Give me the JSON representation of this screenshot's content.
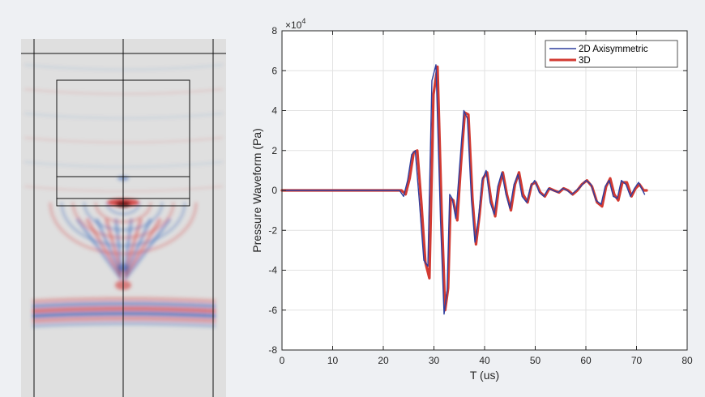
{
  "colors": {
    "background": "#eef0f3",
    "series_2d": "#2f3e9e",
    "series_3d": "#d23a32",
    "field_positive": "#d43a3a",
    "field_negative": "#2f5fb8"
  },
  "simulation": {
    "description_icon": "acoustic-field-icon"
  },
  "chart_data": {
    "type": "line",
    "title": "",
    "xlabel": "T (us)",
    "ylabel": "Pressure Waveform (Pa)",
    "y_exponent_label": "×10",
    "y_exponent_power": "4",
    "xlim": [
      0,
      80
    ],
    "ylim": [
      -8,
      8
    ],
    "y_scale_factor": 10000,
    "xticks": [
      0,
      10,
      20,
      30,
      40,
      50,
      60,
      70,
      80
    ],
    "yticks": [
      -8,
      -6,
      -4,
      -2,
      0,
      2,
      4,
      6,
      8
    ],
    "grid": true,
    "legend_position": "top-right",
    "series": [
      {
        "name": "2D Axisymmetric",
        "color": "#2f3e9e",
        "x": [
          0,
          23.2,
          24,
          24.8,
          25.6,
          26.3,
          27.1,
          28.0,
          28.8,
          29.6,
          30.4,
          31.3,
          32.0,
          32.6,
          33.1,
          33.6,
          34.3,
          35.0,
          35.9,
          36.6,
          37.4,
          38.1,
          38.8,
          39.5,
          40.3,
          41.1,
          41.9,
          42.6,
          43.4,
          44.2,
          45.0,
          45.8,
          46.6,
          47.4,
          48.3,
          49.1,
          49.9,
          50.8,
          51.7,
          52.6,
          53.5,
          54.5,
          55.4,
          56.3,
          57.2,
          58.1,
          59.0,
          60.0,
          61.0,
          62.0,
          63.0,
          63.8,
          64.6,
          65.4,
          66.2,
          67.0,
          67.9,
          68.8,
          69.6,
          70.4,
          71.2,
          71.6
        ],
        "y": [
          0,
          0,
          -0.3,
          0.5,
          1.8,
          2.0,
          -0.5,
          -3.5,
          -3.8,
          5.5,
          6.3,
          -1.5,
          -6.2,
          -5.0,
          -0.2,
          -0.4,
          -1.4,
          1.0,
          4.0,
          3.6,
          -0.5,
          -2.6,
          -1.4,
          0.5,
          1.0,
          -0.6,
          -1.2,
          0.2,
          0.9,
          -0.2,
          -0.9,
          0.3,
          0.8,
          -0.3,
          -0.6,
          0.2,
          0.5,
          -0.1,
          -0.3,
          0.1,
          0.0,
          -0.1,
          0.1,
          0.0,
          -0.2,
          0.0,
          0.2,
          0.5,
          0.3,
          -0.5,
          -0.7,
          0.2,
          0.5,
          -0.3,
          -0.4,
          0.5,
          0.3,
          -0.3,
          0.1,
          0.4,
          0.0,
          -0.2
        ]
      },
      {
        "name": "3D",
        "color": "#d23a32",
        "x": [
          0,
          23.6,
          24.4,
          25.2,
          26.0,
          26.7,
          27.5,
          28.3,
          29.1,
          29.9,
          30.7,
          31.5,
          32.2,
          32.8,
          33.3,
          33.8,
          34.6,
          35.3,
          36.1,
          36.8,
          37.6,
          38.3,
          39.0,
          39.7,
          40.5,
          41.3,
          42.1,
          42.8,
          43.6,
          44.4,
          45.2,
          46.0,
          46.8,
          47.6,
          48.5,
          49.3,
          50.1,
          51.0,
          51.9,
          52.8,
          53.7,
          54.7,
          55.6,
          56.5,
          57.4,
          58.3,
          59.2,
          60.2,
          61.2,
          62.2,
          63.2,
          64.0,
          64.8,
          65.6,
          66.4,
          67.2,
          68.1,
          69.0,
          69.8,
          70.6,
          71.4,
          72.0
        ],
        "y": [
          0,
          0,
          -0.2,
          0.6,
          1.9,
          2.0,
          -0.6,
          -3.6,
          -4.4,
          4.8,
          6.2,
          -1.0,
          -6.0,
          -4.9,
          -0.4,
          -0.5,
          -1.5,
          1.2,
          3.9,
          3.8,
          -0.4,
          -2.7,
          -1.2,
          0.6,
          0.9,
          -0.5,
          -1.3,
          0.1,
          0.9,
          -0.2,
          -1.0,
          0.3,
          0.9,
          -0.2,
          -0.6,
          0.3,
          0.4,
          -0.1,
          -0.3,
          0.1,
          0.0,
          -0.1,
          0.1,
          0.0,
          -0.2,
          0.0,
          0.3,
          0.5,
          0.2,
          -0.6,
          -0.8,
          0.2,
          0.6,
          -0.2,
          -0.5,
          0.4,
          0.4,
          -0.3,
          0.1,
          0.3,
          0.0,
          0.0
        ]
      }
    ]
  }
}
